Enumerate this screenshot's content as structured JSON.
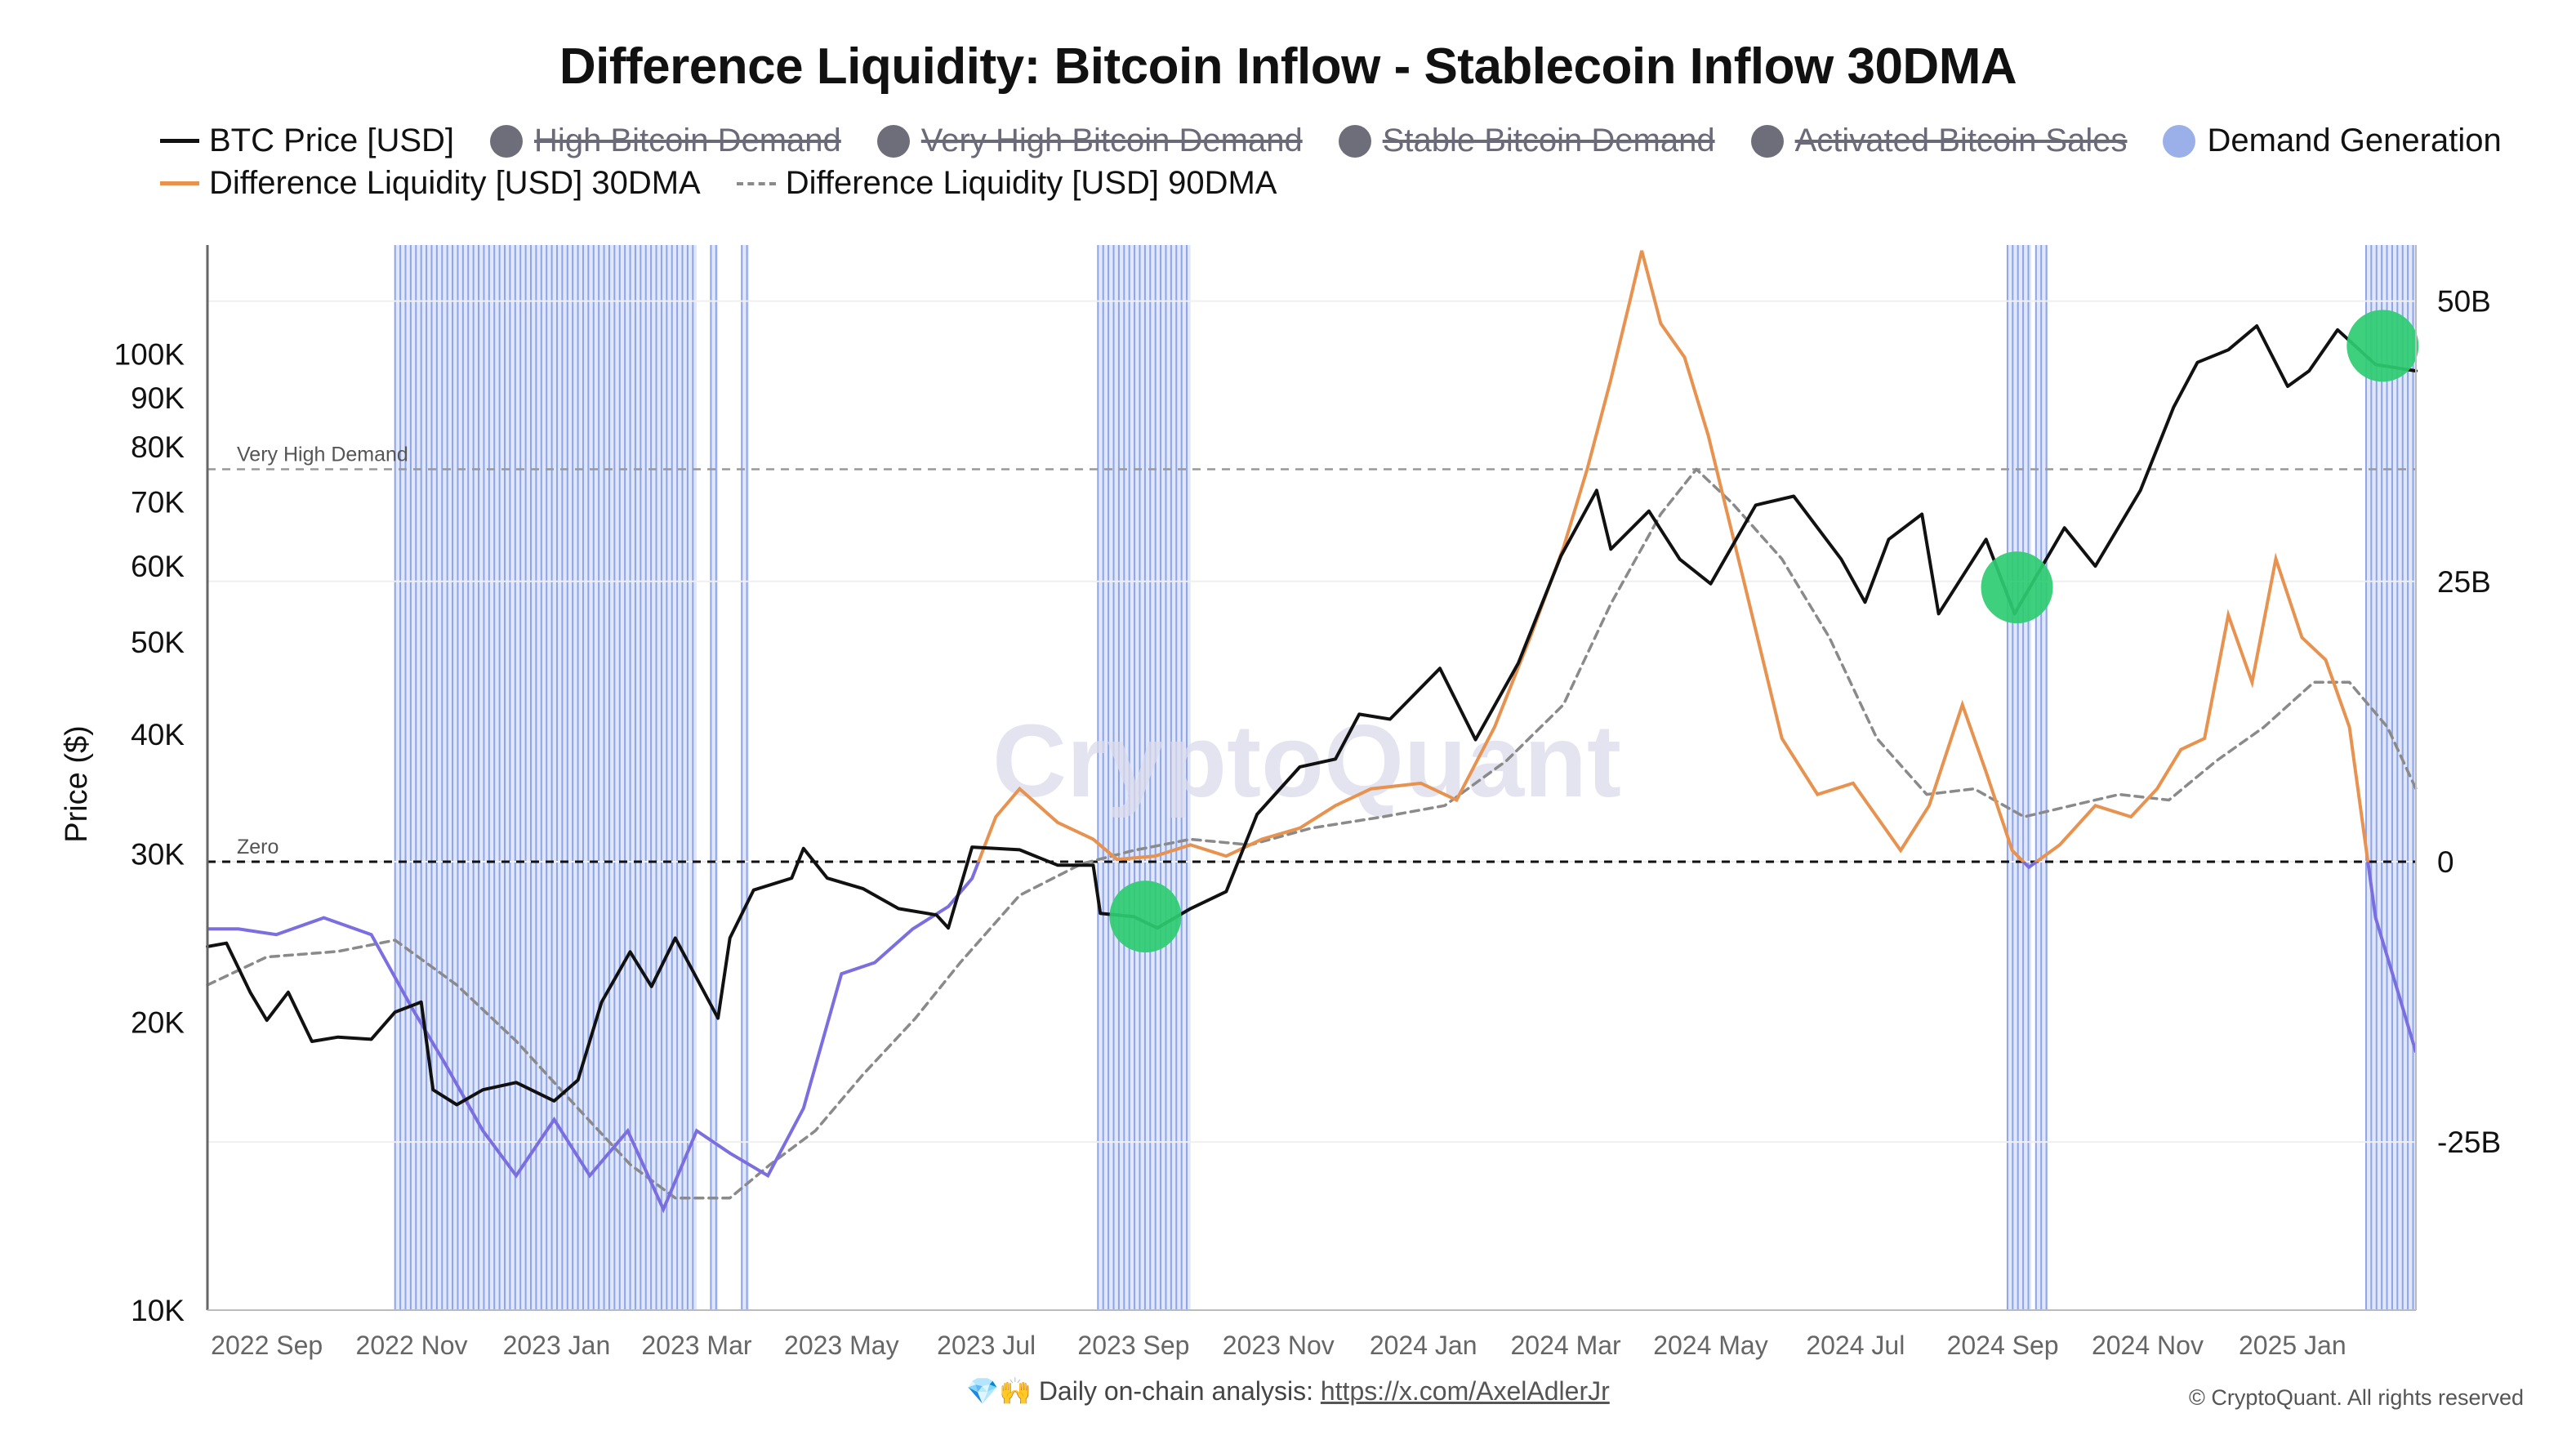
{
  "chart_data": {
    "type": "line",
    "title": "Difference Liquidity: Bitcoin Inflow - Stablecoin Inflow 30DMA",
    "ylabel": "Price ($)",
    "y_left": {
      "scale": "log",
      "ylim": [
        10000,
        130000
      ],
      "tick_labels": [
        "10K",
        "20K",
        "30K",
        "40K",
        "50K",
        "60K",
        "70K",
        "80K",
        "90K",
        "100K"
      ],
      "tick_values": [
        10000,
        20000,
        30000,
        40000,
        50000,
        60000,
        70000,
        80000,
        90000,
        100000
      ]
    },
    "y_right": {
      "scale": "linear",
      "ylim": [
        -40000000000,
        55000000000
      ],
      "tick_labels": [
        "-25B",
        "0",
        "25B",
        "50B"
      ],
      "tick_values": [
        -25000000000,
        0,
        25000000000,
        50000000000
      ]
    },
    "x_ticks": [
      "2022 Sep",
      "2022 Nov",
      "2023 Jan",
      "2023 Mar",
      "2023 May",
      "2023 Jul",
      "2023 Sep",
      "2023 Nov",
      "2024 Jan",
      "2024 Mar",
      "2024 May",
      "2024 Jul",
      "2024 Sep",
      "2024 Nov",
      "2025 Jan"
    ],
    "x_tick_dates": [
      "2022-09-01",
      "2022-11-01",
      "2023-01-01",
      "2023-03-01",
      "2023-05-01",
      "2023-07-01",
      "2023-09-01",
      "2023-11-01",
      "2024-01-01",
      "2024-03-01",
      "2024-05-01",
      "2024-07-01",
      "2024-09-01",
      "2024-11-01",
      "2025-01-01"
    ],
    "x_range": [
      "2022-08-07",
      "2025-02-22"
    ],
    "reference_lines": [
      {
        "label": "Very High Demand",
        "value": 35000000000,
        "axis": "right",
        "style": "dashed",
        "color": "#999999"
      },
      {
        "label": "Zero",
        "value": 0,
        "axis": "right",
        "style": "dashed",
        "color": "#111111"
      }
    ],
    "legend": [
      {
        "label": "BTC Price [USD]",
        "kind": "line",
        "color": "#111111",
        "active": true
      },
      {
        "label": "High Bitcoin Demand",
        "kind": "dot",
        "color": "#6e6e7a",
        "active": false
      },
      {
        "label": "Very High Bitcoin Demand",
        "kind": "dot",
        "color": "#6e6e7a",
        "active": false
      },
      {
        "label": "Stable Bitcoin Demand",
        "kind": "dot",
        "color": "#6e6e7a",
        "active": false
      },
      {
        "label": "Activated Bitcoin Sales",
        "kind": "dot",
        "color": "#6e6e7a",
        "active": false
      },
      {
        "label": "Demand Generation",
        "kind": "dot",
        "color": "#9bb0e8",
        "active": true
      },
      {
        "label": "Difference Liquidity [USD] 30DMA",
        "kind": "line",
        "color": "#e8924f",
        "active": true
      },
      {
        "label": "Difference Liquidity [USD] 90DMA",
        "kind": "dashed",
        "color": "#8a8a8a",
        "active": true
      }
    ],
    "series": [
      {
        "name": "BTC Price [USD]",
        "axis": "left",
        "color": "#111111",
        "points": [
          [
            "2022-08-07",
            24000
          ],
          [
            "2022-08-15",
            24200
          ],
          [
            "2022-08-25",
            21500
          ],
          [
            "2022-09-01",
            20100
          ],
          [
            "2022-09-10",
            21500
          ],
          [
            "2022-09-20",
            19100
          ],
          [
            "2022-10-01",
            19300
          ],
          [
            "2022-10-15",
            19200
          ],
          [
            "2022-10-25",
            20500
          ],
          [
            "2022-11-05",
            21000
          ],
          [
            "2022-11-10",
            17000
          ],
          [
            "2022-11-20",
            16400
          ],
          [
            "2022-12-01",
            17000
          ],
          [
            "2022-12-15",
            17300
          ],
          [
            "2022-12-31",
            16550
          ],
          [
            "2023-01-10",
            17400
          ],
          [
            "2023-01-20",
            21000
          ],
          [
            "2023-02-01",
            23700
          ],
          [
            "2023-02-10",
            21800
          ],
          [
            "2023-02-20",
            24500
          ],
          [
            "2023-03-10",
            20200
          ],
          [
            "2023-03-15",
            24500
          ],
          [
            "2023-03-25",
            27500
          ],
          [
            "2023-04-10",
            28300
          ],
          [
            "2023-04-15",
            30400
          ],
          [
            "2023-04-25",
            28300
          ],
          [
            "2023-05-10",
            27600
          ],
          [
            "2023-05-25",
            26300
          ],
          [
            "2023-06-10",
            25900
          ],
          [
            "2023-06-15",
            25100
          ],
          [
            "2023-06-25",
            30500
          ],
          [
            "2023-07-15",
            30300
          ],
          [
            "2023-07-31",
            29200
          ],
          [
            "2023-08-15",
            29200
          ],
          [
            "2023-08-18",
            26000
          ],
          [
            "2023-09-01",
            25800
          ],
          [
            "2023-09-11",
            25100
          ],
          [
            "2023-09-25",
            26300
          ],
          [
            "2023-10-10",
            27400
          ],
          [
            "2023-10-23",
            33000
          ],
          [
            "2023-11-10",
            37000
          ],
          [
            "2023-11-25",
            37700
          ],
          [
            "2023-12-05",
            42000
          ],
          [
            "2023-12-18",
            41500
          ],
          [
            "2024-01-08",
            46900
          ],
          [
            "2024-01-23",
            39500
          ],
          [
            "2024-02-10",
            47500
          ],
          [
            "2024-02-28",
            61500
          ],
          [
            "2024-03-14",
            72000
          ],
          [
            "2024-03-20",
            62500
          ],
          [
            "2024-04-05",
            68500
          ],
          [
            "2024-04-18",
            61000
          ],
          [
            "2024-05-01",
            57500
          ],
          [
            "2024-05-20",
            69500
          ],
          [
            "2024-06-05",
            71000
          ],
          [
            "2024-06-25",
            61000
          ],
          [
            "2024-07-05",
            55000
          ],
          [
            "2024-07-15",
            64000
          ],
          [
            "2024-07-29",
            68000
          ],
          [
            "2024-08-05",
            53500
          ],
          [
            "2024-08-25",
            64000
          ],
          [
            "2024-09-06",
            53500
          ],
          [
            "2024-09-27",
            65800
          ],
          [
            "2024-10-10",
            60000
          ],
          [
            "2024-10-29",
            72000
          ],
          [
            "2024-11-12",
            88000
          ],
          [
            "2024-11-22",
            98000
          ],
          [
            "2024-12-05",
            101000
          ],
          [
            "2024-12-17",
            107000
          ],
          [
            "2024-12-30",
            92500
          ],
          [
            "2025-01-08",
            96000
          ],
          [
            "2025-01-20",
            106000
          ],
          [
            "2025-02-05",
            97500
          ],
          [
            "2025-02-22",
            96000
          ]
        ]
      },
      {
        "name": "Difference Liquidity [USD] 30DMA",
        "axis": "right",
        "color": "#e8924f",
        "points": [
          [
            "2022-08-07",
            -6000000000
          ],
          [
            "2022-08-20",
            -6000000000
          ],
          [
            "2022-09-05",
            -6500000000
          ],
          [
            "2022-09-25",
            -5000000000
          ],
          [
            "2022-10-15",
            -6500000000
          ],
          [
            "2022-11-01",
            -13000000000
          ],
          [
            "2022-11-15",
            -18000000000
          ],
          [
            "2022-12-01",
            -24000000000
          ],
          [
            "2022-12-15",
            -28000000000
          ],
          [
            "2022-12-31",
            -23000000000
          ],
          [
            "2023-01-15",
            -28000000000
          ],
          [
            "2023-01-31",
            -24000000000
          ],
          [
            "2023-02-15",
            -31000000000
          ],
          [
            "2023-03-01",
            -24000000000
          ],
          [
            "2023-03-15",
            -26000000000
          ],
          [
            "2023-03-31",
            -28000000000
          ],
          [
            "2023-04-15",
            -22000000000
          ],
          [
            "2023-05-01",
            -10000000000
          ],
          [
            "2023-05-15",
            -9000000000
          ],
          [
            "2023-05-31",
            -6000000000
          ],
          [
            "2023-06-15",
            -4000000000
          ],
          [
            "2023-06-25",
            -1500000000
          ],
          [
            "2023-07-05",
            4000000000
          ],
          [
            "2023-07-15",
            6500000000
          ],
          [
            "2023-07-31",
            3500000000
          ],
          [
            "2023-08-15",
            2000000000
          ],
          [
            "2023-08-25",
            200000000
          ],
          [
            "2023-09-10",
            500000000
          ],
          [
            "2023-09-25",
            1500000000
          ],
          [
            "2023-10-10",
            500000000
          ],
          [
            "2023-10-25",
            2000000000
          ],
          [
            "2023-11-10",
            3000000000
          ],
          [
            "2023-11-25",
            5000000000
          ],
          [
            "2023-12-10",
            6500000000
          ],
          [
            "2023-12-31",
            7000000000
          ],
          [
            "2024-01-15",
            5500000000
          ],
          [
            "2024-01-31",
            12000000000
          ],
          [
            "2024-02-15",
            20000000000
          ],
          [
            "2024-02-29",
            28000000000
          ],
          [
            "2024-03-10",
            35000000000
          ],
          [
            "2024-03-20",
            43000000000
          ],
          [
            "2024-03-28",
            50000000000
          ],
          [
            "2024-04-02",
            54500000000
          ],
          [
            "2024-04-10",
            48000000000
          ],
          [
            "2024-04-20",
            45000000000
          ],
          [
            "2024-04-30",
            38000000000
          ],
          [
            "2024-05-15",
            25000000000
          ],
          [
            "2024-05-31",
            11000000000
          ],
          [
            "2024-06-15",
            6000000000
          ],
          [
            "2024-06-30",
            7000000000
          ],
          [
            "2024-07-10",
            4000000000
          ],
          [
            "2024-07-20",
            1000000000
          ],
          [
            "2024-08-01",
            5000000000
          ],
          [
            "2024-08-15",
            14000000000
          ],
          [
            "2024-08-25",
            8000000000
          ],
          [
            "2024-09-05",
            1000000000
          ],
          [
            "2024-09-12",
            -500000000
          ],
          [
            "2024-09-25",
            1500000000
          ],
          [
            "2024-10-10",
            5000000000
          ],
          [
            "2024-10-25",
            4000000000
          ],
          [
            "2024-11-05",
            6500000000
          ],
          [
            "2024-11-15",
            10000000000
          ],
          [
            "2024-11-25",
            11000000000
          ],
          [
            "2024-12-05",
            22000000000
          ],
          [
            "2024-12-15",
            16000000000
          ],
          [
            "2024-12-25",
            27000000000
          ],
          [
            "2025-01-05",
            20000000000
          ],
          [
            "2025-01-15",
            18000000000
          ],
          [
            "2025-01-25",
            12000000000
          ],
          [
            "2025-02-05",
            -5000000000
          ],
          [
            "2025-02-15",
            -12000000000
          ],
          [
            "2025-02-22",
            -17000000000
          ]
        ]
      },
      {
        "name": "Difference Liquidity [USD] 90DMA",
        "axis": "right",
        "color": "#8a8a8a",
        "dashed": true,
        "points": [
          [
            "2022-08-07",
            -11000000000
          ],
          [
            "2022-09-01",
            -8500000000
          ],
          [
            "2022-10-01",
            -8000000000
          ],
          [
            "2022-10-25",
            -7000000000
          ],
          [
            "2022-11-20",
            -11000000000
          ],
          [
            "2022-12-15",
            -16000000000
          ],
          [
            "2023-01-10",
            -22000000000
          ],
          [
            "2023-02-01",
            -27000000000
          ],
          [
            "2023-02-20",
            -30000000000
          ],
          [
            "2023-03-15",
            -30000000000
          ],
          [
            "2023-04-01",
            -27000000000
          ],
          [
            "2023-04-20",
            -24000000000
          ],
          [
            "2023-05-10",
            -19000000000
          ],
          [
            "2023-06-01",
            -14000000000
          ],
          [
            "2023-06-20",
            -9000000000
          ],
          [
            "2023-07-15",
            -3000000000
          ],
          [
            "2023-08-10",
            -200000000
          ],
          [
            "2023-09-01",
            1000000000
          ],
          [
            "2023-09-25",
            2000000000
          ],
          [
            "2023-10-20",
            1500000000
          ],
          [
            "2023-11-15",
            3000000000
          ],
          [
            "2023-12-15",
            4000000000
          ],
          [
            "2024-01-10",
            5000000000
          ],
          [
            "2024-02-05",
            9000000000
          ],
          [
            "2024-02-29",
            14000000000
          ],
          [
            "2024-03-20",
            23000000000
          ],
          [
            "2024-04-10",
            31000000000
          ],
          [
            "2024-04-25",
            35000000000
          ],
          [
            "2024-05-10",
            32000000000
          ],
          [
            "2024-05-31",
            27000000000
          ],
          [
            "2024-06-20",
            20000000000
          ],
          [
            "2024-07-10",
            11000000000
          ],
          [
            "2024-07-31",
            6000000000
          ],
          [
            "2024-08-20",
            6500000000
          ],
          [
            "2024-09-10",
            4000000000
          ],
          [
            "2024-09-30",
            5000000000
          ],
          [
            "2024-10-20",
            6000000000
          ],
          [
            "2024-11-10",
            5500000000
          ],
          [
            "2024-11-30",
            9000000000
          ],
          [
            "2024-12-20",
            12000000000
          ],
          [
            "2025-01-10",
            16000000000
          ],
          [
            "2025-01-25",
            16000000000
          ],
          [
            "2025-02-10",
            12000000000
          ],
          [
            "2025-02-22",
            6500000000
          ]
        ]
      },
      {
        "name": "Difference Liquidity [USD] 30DMA (negative)",
        "axis": "right",
        "color": "#7b6ee0",
        "note_kind": "negative segment coloring",
        "points": []
      }
    ],
    "demand_generation_periods": [
      [
        "2022-10-25",
        "2023-03-01"
      ],
      [
        "2023-03-07",
        "2023-03-10"
      ],
      [
        "2023-03-20",
        "2023-03-23"
      ],
      [
        "2023-08-17",
        "2023-09-25"
      ],
      [
        "2024-09-03",
        "2024-09-13"
      ],
      [
        "2024-09-15",
        "2024-09-20"
      ],
      [
        "2025-02-01",
        "2025-02-22"
      ]
    ],
    "highlights": [
      {
        "date": "2023-09-06",
        "value": 25800
      },
      {
        "date": "2024-09-07",
        "value": 57000
      },
      {
        "date": "2025-02-08",
        "value": 102000
      }
    ],
    "watermark": "CryptoQuant"
  },
  "footer": {
    "emoji": "💎🙌",
    "text": "Daily on-chain analysis: ",
    "link": "https://x.com/AxelAdlerJr",
    "copyright": "© CryptoQuant. All rights reserved"
  }
}
